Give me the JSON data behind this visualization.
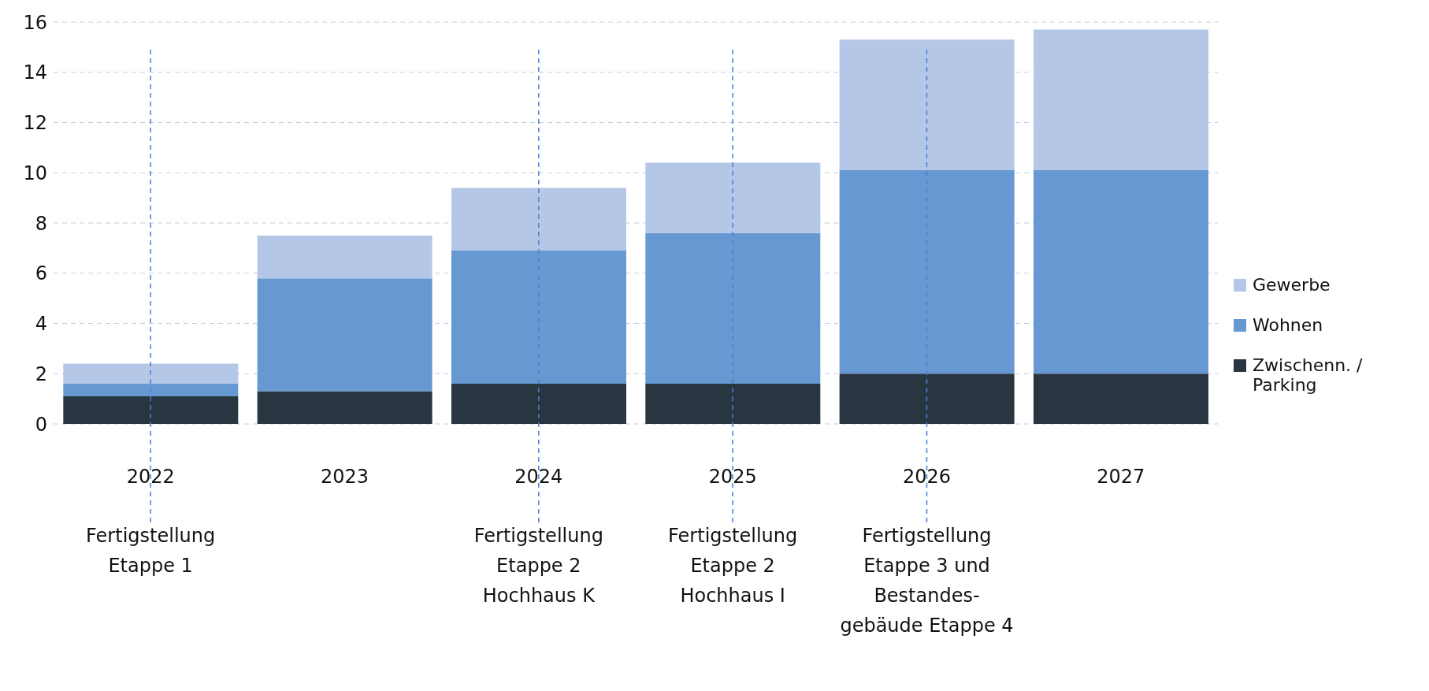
{
  "chart_data": {
    "type": "bar",
    "stacked": true,
    "categories": [
      "2022",
      "2023",
      "2024",
      "2025",
      "2026",
      "2027"
    ],
    "series": [
      {
        "name": "Zwischenn. / Parking",
        "color": "#2a3542",
        "values": [
          1.1,
          1.3,
          1.6,
          1.6,
          2.0,
          2.0
        ]
      },
      {
        "name": "Wohnen",
        "color": "#6699d1",
        "values": [
          0.5,
          4.5,
          5.3,
          6.0,
          8.1,
          8.1
        ]
      },
      {
        "name": "Gewerbe",
        "color": "#b4c7e7",
        "values": [
          0.8,
          1.7,
          2.5,
          2.8,
          5.2,
          5.6
        ]
      }
    ],
    "ylim": [
      0,
      16
    ],
    "yticks": [
      0,
      2,
      4,
      6,
      8,
      10,
      12,
      14,
      16
    ],
    "grid": "y",
    "legend": "right",
    "ref_lines": [
      {
        "axis": "x",
        "value": "2022",
        "label": "Fertigstellung\nEtappe 1",
        "color": "#4a7fd4",
        "line_style": "dashed"
      },
      {
        "axis": "x",
        "value": "2024",
        "label": "Fertigstellung\nEtappe 2\nHochhaus K",
        "color": "#4a7fd4",
        "line_style": "dashed"
      },
      {
        "axis": "x",
        "value": "2025",
        "label": "Fertigstellung\nEtappe 2\nHochhaus I",
        "color": "#4a7fd4",
        "line_style": "dashed"
      },
      {
        "axis": "x",
        "value": "2026",
        "label": "Fertigstellung\nEtappe 3 und\nBestandes-\ngebäude Etappe 4",
        "color": "#4a7fd4",
        "line_style": "dashed"
      }
    ]
  }
}
